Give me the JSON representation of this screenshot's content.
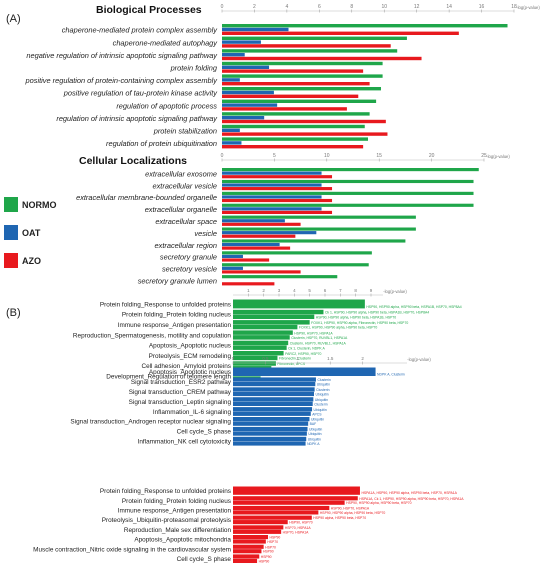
{
  "panel_labels": {
    "a": "(A)",
    "b": "(B)"
  },
  "colors": {
    "NORMO": "#1fa64a",
    "OAT": "#1f66b2",
    "AZO": "#e8191e"
  },
  "legend": [
    {
      "name": "NORMO",
      "color": "#1fa64a"
    },
    {
      "name": "OAT",
      "color": "#1f66b2"
    },
    {
      "name": "AZO",
      "color": "#e8191e"
    }
  ],
  "chart_data": [
    {
      "type": "bar",
      "orientation": "horizontal",
      "title": "Biological Processes",
      "xlabel": "-log(p-value)",
      "xlim": [
        0,
        18
      ],
      "xticks": [
        0,
        2,
        4,
        6,
        8,
        10,
        12,
        14,
        16,
        18
      ],
      "categories": [
        "chaperone-mediated protein complex assembly",
        "chaperone-mediated autophagy",
        "negative regulation of intrinsic apoptotic signaling pathway",
        "protein folding",
        "positive regulation of protein-containing complex assembly",
        "positive regulation of tau-protein kinase activity",
        "regulation of apoptotic process",
        "regulation of intrinsic apoptotic signaling pathway",
        "protein stabilization",
        "regulation of protein ubiquitination"
      ],
      "series": [
        {
          "name": "NORMO",
          "values": [
            17.6,
            11.4,
            10.8,
            9.9,
            9.9,
            9.8,
            9.5,
            9.1,
            8.8,
            9.0
          ]
        },
        {
          "name": "OAT",
          "values": [
            4.1,
            2.4,
            1.4,
            2.9,
            1.1,
            3.2,
            3.4,
            2.6,
            1.1,
            1.2
          ]
        },
        {
          "name": "AZO",
          "values": [
            14.6,
            10.4,
            12.3,
            8.7,
            9.1,
            8.4,
            7.7,
            10.1,
            10.2,
            8.7
          ]
        }
      ]
    },
    {
      "type": "bar",
      "orientation": "horizontal",
      "title": "Cellular Localizations",
      "xlabel": "-log(p-value)",
      "xlim": [
        0,
        25
      ],
      "xticks": [
        0,
        5,
        10,
        15,
        20,
        25
      ],
      "categories": [
        "extracellular exosome",
        "extracellular vesicle",
        "extracellular membrane-bounded organelle",
        "extracellular organelle",
        "extracellular space",
        "vesicle",
        "extracellular region",
        "secretory granule",
        "secretory vesicle",
        "secretory granule lumen"
      ],
      "series": [
        {
          "name": "NORMO",
          "values": [
            24.5,
            24.0,
            24.0,
            24.0,
            18.5,
            18.5,
            17.5,
            14.3,
            14.0,
            11.0
          ]
        },
        {
          "name": "OAT",
          "values": [
            9.5,
            9.5,
            9.5,
            9.5,
            6.0,
            9.0,
            5.5,
            2.0,
            2.0,
            0
          ]
        },
        {
          "name": "AZO",
          "values": [
            10.5,
            10.5,
            10.5,
            10.5,
            7.5,
            7.0,
            6.5,
            4.5,
            7.5,
            5.0
          ]
        }
      ]
    },
    {
      "type": "bar",
      "orientation": "horizontal",
      "series_name": "NORMO",
      "xlabel": "-log(p-value)",
      "xlim": [
        0,
        9
      ],
      "xticks": [
        1,
        2,
        3,
        4,
        5,
        6,
        7,
        8,
        9
      ],
      "categories": [
        "Protein folding_Response to unfolded proteins",
        "Protein folding_Protein folding nucleus",
        "Immune response_Antigen presentation",
        "Reproduction_Spermatogenesis, motility and copulation",
        "Apoptosis_Apoptotic nucleus",
        "Proteolysis_ECM remodeling",
        "Cell adhesion_Amyloid proteins",
        "Development_Regulation of telomere length"
      ],
      "bars": [
        {
          "values": [
            8.6
          ],
          "labels": [
            "HSP90, HSP90 alpha, HSP90 beta, HSPA1B, HSP70, HSP8A4"
          ]
        },
        {
          "values": [
            5.9,
            5.3
          ],
          "labels": [
            "Ck 1, HSP90, HSP90 alpha, HSP90 beta, HSPA1B, HSP70, HSP8A4",
            "HSP90, HSP90 alpha, HSP90 beta, HSPA1B, HSP70"
          ]
        },
        {
          "values": [
            5.0,
            4.2
          ],
          "labels": [
            "FOXK1, HSP90, HSP90 alpha, Fibronectin, HSP90 beta, HSP70",
            "FOXK1, HSP90, HSP90 alpha, HSP90 beta, HSP70"
          ]
        },
        {
          "values": [
            3.9,
            3.7
          ],
          "labels": [
            "HSP90, HSP70, HSPA1A",
            "Clusterin, HSP70, RUVBL1, HSPA1A"
          ]
        },
        {
          "values": [
            3.6,
            3.5
          ],
          "labels": [
            "Clusterin, HSP70, RUVBL1, HSPA1A",
            "Ck 1, Clusterin, NDPK A"
          ]
        },
        {
          "values": [
            3.3,
            2.9
          ],
          "labels": [
            "PARC2, HSP90, HSP70",
            "Fibronectin, Clusterin"
          ]
        },
        {
          "values": [
            2.8,
            2.5
          ],
          "labels": [
            "Fibronectin, APCS",
            "Fibronectin, APCS"
          ]
        },
        {
          "values": [
            2.4,
            1.8
          ],
          "labels": [
            "Fibronectin, CLK4",
            "HSP90"
          ]
        }
      ]
    },
    {
      "type": "bar",
      "orientation": "horizontal",
      "series_name": "OAT",
      "xlabel": "-log(p-value)",
      "xlim": [
        0,
        2.5
      ],
      "xticks": [
        0,
        0.5,
        1,
        1.5,
        2
      ],
      "xtick_labels": [
        "0",
        "0.5",
        "1",
        "1.5",
        "2"
      ],
      "categories": [
        "Apoptosis_Apoptotic nucleus",
        "Signal transduction_ESR2 pathway",
        "Signal transduction_CREM pathway",
        "Signal transduction_Leptin signaling",
        "Inflammation_IL-6 signaling",
        "Signal transduction_Androgen receptor nuclear signaling",
        "Cell cycle_S phase",
        "Inflammation_NK cell cytotoxicity"
      ],
      "bars": [
        {
          "values": [
            2.2
          ],
          "labels": [
            "NDPK A, Clusterin"
          ]
        },
        {
          "values": [
            1.28,
            1.27
          ],
          "labels": [
            "Clusterin",
            "Ubiquitin"
          ]
        },
        {
          "values": [
            1.26,
            1.25
          ],
          "labels": [
            "Clusterin",
            "Ubiquitin"
          ]
        },
        {
          "values": [
            1.24,
            1.23
          ],
          "labels": [
            "Ubiquitin",
            "Clusterin"
          ]
        },
        {
          "values": [
            1.22,
            1.2
          ],
          "labels": [
            "Ubiquitin",
            "APCS"
          ]
        },
        {
          "values": [
            1.18,
            1.16
          ],
          "labels": [
            "Ubiquitin",
            "BAF"
          ]
        },
        {
          "values": [
            1.15,
            1.14
          ],
          "labels": [
            "Ubiquitin",
            "Ubiquitin"
          ]
        },
        {
          "values": [
            1.13,
            1.12
          ],
          "labels": [
            "Ubiquitin",
            "NDPK A"
          ]
        }
      ]
    },
    {
      "type": "bar",
      "orientation": "horizontal",
      "series_name": "AZO",
      "xlim": [
        0,
        9
      ],
      "categories": [
        "Protein folding_Response to unfolded proteins",
        "Protein folding_Protein folding nucleus",
        "Immune response_Antigen presentation",
        "Proteolysis_Ubiquitin-proteasomal proteolysis",
        "Reproduction_Male sex differentiation",
        "Apoptosis_Apoptotic mitochondria",
        "Muscle contraction_Nitric oxide signaling in the cardiovascular system",
        "Cell cycle_S phase"
      ],
      "bars": [
        {
          "values": [
            5.8
          ],
          "labels": [
            "HSPA1A, HSP90, HSP90 alpha, HSP90 beta, HSP70, HSPA1A"
          ]
        },
        {
          "values": [
            5.7,
            5.1
          ],
          "labels": [
            "HSPA1A, Ck 1, HSP90, HSP90 alpha, HSP90 beta, HSP70, HSPA1A",
            "HSP90, HSP90 alpha, HSP90 beta, HSP70"
          ]
        },
        {
          "values": [
            4.4,
            3.9
          ],
          "labels": [
            "HSP90, HSP70, HSPA1A",
            "HSP90, HSP90 alpha, HSP90 beta, HSP70"
          ]
        },
        {
          "values": [
            3.6,
            2.5
          ],
          "labels": [
            "HSP90 alpha, HSP90 beta, HSP70",
            "HSP90, HSP70"
          ]
        },
        {
          "values": [
            2.3,
            2.2
          ],
          "labels": [
            "HSP70, HSPA1A",
            "HSP70, HSPA1A"
          ]
        },
        {
          "values": [
            1.6,
            1.5
          ],
          "labels": [
            "HSP90",
            "HSP70"
          ]
        },
        {
          "values": [
            1.4,
            1.3
          ],
          "labels": [
            "HSP70",
            "HSP90"
          ]
        },
        {
          "values": [
            1.2,
            1.1
          ],
          "labels": [
            "HSP90",
            "HSP90"
          ]
        }
      ]
    }
  ]
}
